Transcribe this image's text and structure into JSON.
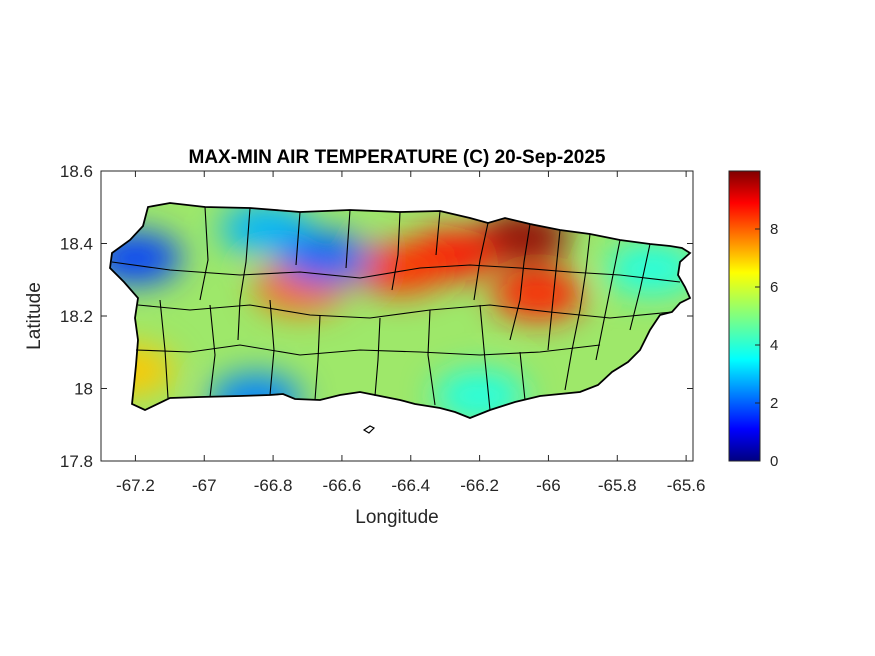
{
  "title": "MAX-MIN AIR TEMPERATURE (C) 20-Sep-2025",
  "xlabel": "Longitude",
  "ylabel": "Latitude",
  "x_ticks": [
    "-67.2",
    "-67",
    "-66.8",
    "-66.6",
    "-66.4",
    "-66.2",
    "-66",
    "-65.8",
    "-65.6"
  ],
  "y_ticks": [
    "18.6",
    "18.4",
    "18.2",
    "18",
    "17.8"
  ],
  "colorbar": {
    "ticks": [
      "8",
      "6",
      "4",
      "2",
      "0"
    ],
    "min": 0,
    "max": 10,
    "colormap": "jet"
  },
  "chart_data": {
    "type": "heatmap",
    "title": "MAX-MIN AIR TEMPERATURE (C) 20-Sep-2025",
    "xlabel": "Longitude",
    "ylabel": "Latitude",
    "xlim": [
      -67.3,
      -65.58
    ],
    "ylim": [
      17.8,
      18.6
    ],
    "clim": [
      0,
      10
    ],
    "colormap": "jet",
    "grid": false,
    "hotspots": [
      {
        "lon": -66.07,
        "lat": 18.42,
        "value": 9.8
      },
      {
        "lon": -66.28,
        "lat": 18.37,
        "value": 8.6
      },
      {
        "lon": -66.43,
        "lat": 18.33,
        "value": 8.3
      },
      {
        "lon": -66.03,
        "lat": 18.26,
        "value": 8.5
      },
      {
        "lon": -66.72,
        "lat": 18.28,
        "value": 7.8
      },
      {
        "lon": -67.22,
        "lat": 18.05,
        "value": 6.8
      },
      {
        "lon": -67.2,
        "lat": 18.36,
        "value": 1.8
      },
      {
        "lon": -66.82,
        "lat": 18.44,
        "value": 3.0
      },
      {
        "lon": -66.65,
        "lat": 18.36,
        "value": 2.2
      },
      {
        "lon": -66.85,
        "lat": 17.97,
        "value": 2.5
      },
      {
        "lon": -65.7,
        "lat": 18.33,
        "value": 4.0
      },
      {
        "lon": -66.2,
        "lat": 17.98,
        "value": 4.0
      }
    ]
  }
}
